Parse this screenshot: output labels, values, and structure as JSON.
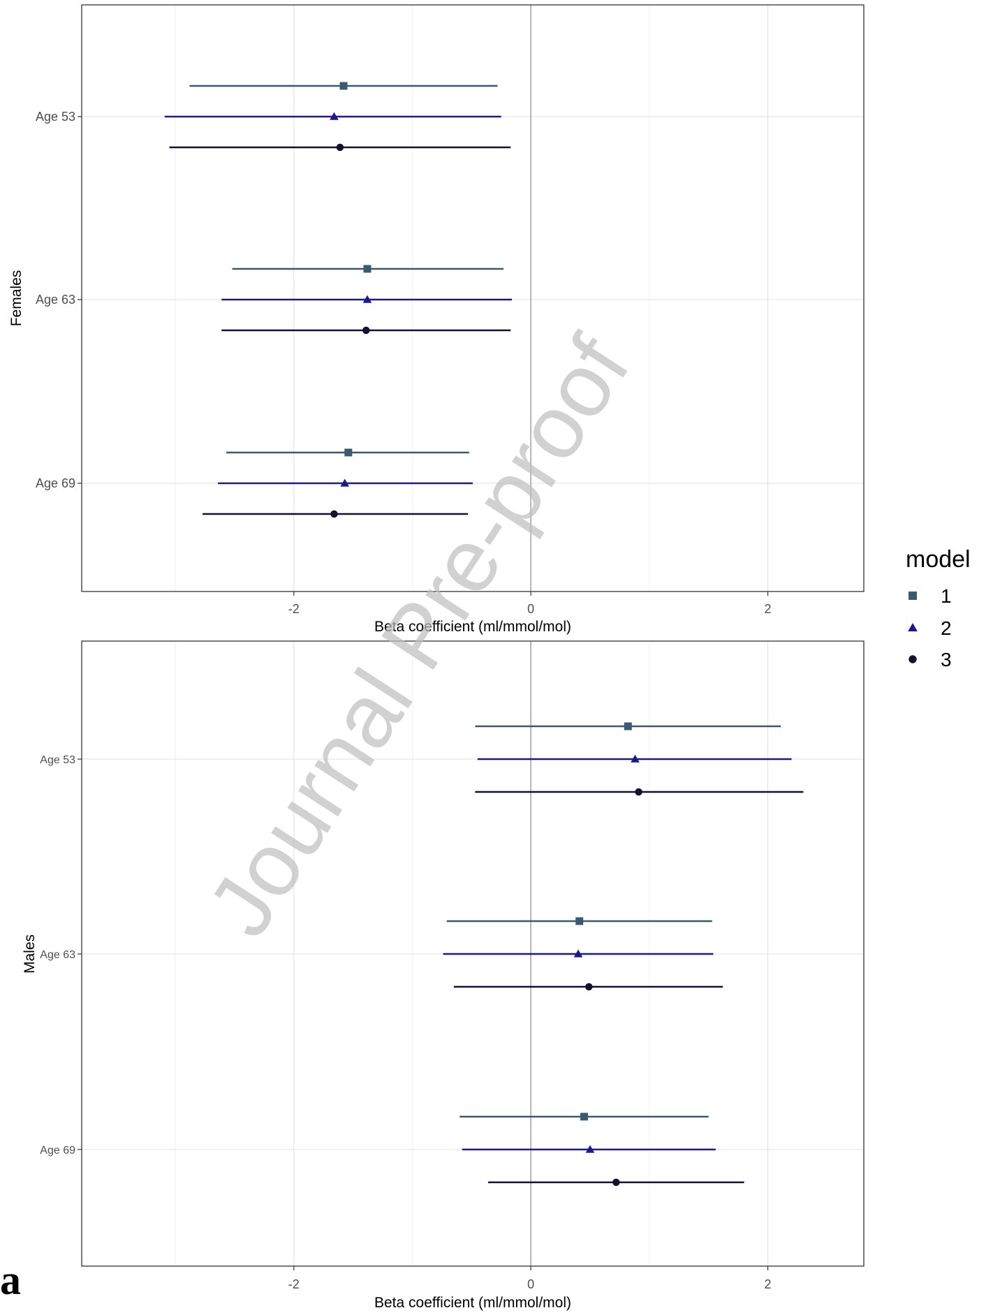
{
  "panel_letter": "a",
  "watermark": "Journal Pre-proof",
  "legend": {
    "title": "model",
    "entries": [
      {
        "label": "1",
        "shape": "square",
        "color": "#3a5a70"
      },
      {
        "label": "2",
        "shape": "triangle",
        "color": "#1a1a8c"
      },
      {
        "label": "3",
        "shape": "circle",
        "color": "#12122e"
      }
    ]
  },
  "chart_data": [
    {
      "type": "forest",
      "panel": "Females",
      "ylabel": "Females",
      "xlabel": "Beta coefficient (ml/mmol/mol)",
      "xlim": [
        -3.79,
        2.81
      ],
      "xticks": [
        -2,
        0,
        2
      ],
      "xtick_labels": [
        "-2",
        "0",
        "2"
      ],
      "grid": true,
      "zero_line": 0,
      "categories": [
        "Age 53",
        "Age 63",
        "Age 69"
      ],
      "series": [
        {
          "name": "1",
          "estimates": [
            -1.58,
            -1.38,
            -1.54
          ],
          "lower": [
            -2.88,
            -2.52,
            -2.57
          ],
          "upper": [
            -0.28,
            -0.23,
            -0.52
          ]
        },
        {
          "name": "2",
          "estimates": [
            -1.66,
            -1.38,
            -1.57
          ],
          "lower": [
            -3.09,
            -2.61,
            -2.64
          ],
          "upper": [
            -0.25,
            -0.16,
            -0.49
          ]
        },
        {
          "name": "3",
          "estimates": [
            -1.61,
            -1.39,
            -1.66
          ],
          "lower": [
            -3.05,
            -2.61,
            -2.77
          ],
          "upper": [
            -0.17,
            -0.17,
            -0.53
          ]
        }
      ]
    },
    {
      "type": "forest",
      "panel": "Males",
      "ylabel": "Males",
      "xlabel": "Beta coefficient (ml/mmol/mol)",
      "xlim": [
        -3.79,
        2.81
      ],
      "xticks": [
        -2,
        0,
        2
      ],
      "xtick_labels": [
        "-2",
        "0",
        "2"
      ],
      "grid": true,
      "zero_line": 0,
      "categories": [
        "Age 53",
        "Age 63",
        "Age 69"
      ],
      "series": [
        {
          "name": "1",
          "estimates": [
            0.82,
            0.41,
            0.45
          ],
          "lower": [
            -0.47,
            -0.71,
            -0.6
          ],
          "upper": [
            2.11,
            1.53,
            1.5
          ]
        },
        {
          "name": "2",
          "estimates": [
            0.88,
            0.4,
            0.5
          ],
          "lower": [
            -0.45,
            -0.74,
            -0.58
          ],
          "upper": [
            2.2,
            1.54,
            1.56
          ]
        },
        {
          "name": "3",
          "estimates": [
            0.91,
            0.49,
            0.72
          ],
          "lower": [
            -0.47,
            -0.65,
            -0.36
          ],
          "upper": [
            2.3,
            1.62,
            1.8
          ]
        }
      ]
    }
  ]
}
